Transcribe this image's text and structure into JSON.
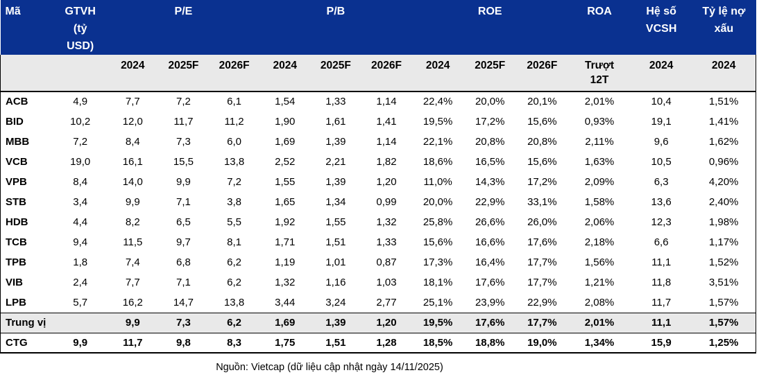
{
  "colors": {
    "header_bg": "#0a3190",
    "band_bg": "#e9e9e9",
    "border": "#000000"
  },
  "table": {
    "header_groups": [
      {
        "label": "Mã",
        "span": 1,
        "align": "left"
      },
      {
        "label": "GTVH\n(tỷ\nUSD)",
        "span": 1
      },
      {
        "label": "P/E",
        "span": 3
      },
      {
        "label": "P/B",
        "span": 3
      },
      {
        "label": "ROE",
        "span": 3
      },
      {
        "label": "ROA",
        "span": 1
      },
      {
        "label": "Hệ số\nVCSH",
        "span": 1
      },
      {
        "label": "Tỷ lệ nợ\nxấu",
        "span": 1
      }
    ],
    "subheaders": [
      "",
      "",
      "2024",
      "2025F",
      "2026F",
      "2024",
      "2025F",
      "2026F",
      "2024",
      "2025F",
      "2026F",
      "Trượt\n12T",
      "2024",
      "2024"
    ]
  },
  "chart_data": {
    "type": "table",
    "title": "",
    "columns": [
      "Mã",
      "GTVH (tỷ USD)",
      "P/E 2024",
      "P/E 2025F",
      "P/E 2026F",
      "P/B 2024",
      "P/B 2025F",
      "P/B 2026F",
      "ROE 2024",
      "ROE 2025F",
      "ROE 2026F",
      "ROA Trượt 12T",
      "Hệ số VCSH 2024",
      "Tỷ lệ nợ xấu 2024"
    ],
    "rows": [
      [
        "ACB",
        "4,9",
        "7,7",
        "7,2",
        "6,1",
        "1,54",
        "1,33",
        "1,14",
        "22,4%",
        "20,0%",
        "20,1%",
        "2,01%",
        "10,4",
        "1,51%"
      ],
      [
        "BID",
        "10,2",
        "12,0",
        "11,7",
        "11,2",
        "1,90",
        "1,61",
        "1,41",
        "19,5%",
        "17,2%",
        "15,6%",
        "0,93%",
        "19,1",
        "1,41%"
      ],
      [
        "MBB",
        "7,2",
        "8,4",
        "7,3",
        "6,0",
        "1,69",
        "1,39",
        "1,14",
        "22,1%",
        "20,8%",
        "20,8%",
        "2,11%",
        "9,6",
        "1,62%"
      ],
      [
        "VCB",
        "19,0",
        "16,1",
        "15,5",
        "13,8",
        "2,52",
        "2,21",
        "1,82",
        "18,6%",
        "16,5%",
        "15,6%",
        "1,63%",
        "10,5",
        "0,96%"
      ],
      [
        "VPB",
        "8,4",
        "14,0",
        "9,9",
        "7,2",
        "1,55",
        "1,39",
        "1,20",
        "11,0%",
        "14,3%",
        "17,2%",
        "2,09%",
        "6,3",
        "4,20%"
      ],
      [
        "STB",
        "3,4",
        "9,9",
        "7,1",
        "3,8",
        "1,65",
        "1,34",
        "0,99",
        "20,0%",
        "22,9%",
        "33,1%",
        "1,58%",
        "13,6",
        "2,40%"
      ],
      [
        "HDB",
        "4,4",
        "8,2",
        "6,5",
        "5,5",
        "1,92",
        "1,55",
        "1,32",
        "25,8%",
        "26,6%",
        "26,0%",
        "2,06%",
        "12,3",
        "1,98%"
      ],
      [
        "TCB",
        "9,4",
        "11,5",
        "9,7",
        "8,1",
        "1,71",
        "1,51",
        "1,33",
        "15,6%",
        "16,6%",
        "17,6%",
        "2,18%",
        "6,6",
        "1,17%"
      ],
      [
        "TPB",
        "1,8",
        "7,4",
        "6,8",
        "6,2",
        "1,19",
        "1,01",
        "0,87",
        "17,3%",
        "16,4%",
        "17,7%",
        "1,56%",
        "11,1",
        "1,52%"
      ],
      [
        "VIB",
        "2,4",
        "7,7",
        "7,1",
        "6,2",
        "1,32",
        "1,16",
        "1,03",
        "18,1%",
        "17,6%",
        "17,7%",
        "1,21%",
        "11,8",
        "3,51%"
      ],
      [
        "LPB",
        "5,7",
        "16,2",
        "14,7",
        "13,8",
        "3,44",
        "3,24",
        "2,77",
        "25,1%",
        "23,9%",
        "22,9%",
        "2,08%",
        "11,7",
        "1,57%"
      ]
    ],
    "median_row": [
      "Trung vị",
      "",
      "9,9",
      "7,3",
      "6,2",
      "1,69",
      "1,39",
      "1,20",
      "19,5%",
      "17,6%",
      "17,7%",
      "2,01%",
      "11,1",
      "1,57%"
    ],
    "highlight_row": [
      "CTG",
      "9,9",
      "11,7",
      "9,8",
      "8,3",
      "1,75",
      "1,51",
      "1,28",
      "18,5%",
      "18,8%",
      "19,0%",
      "1,34%",
      "15,9",
      "1,25%"
    ],
    "source": "Nguồn: Vietcap (dữ liệu cập nhật ngày 14/11/2025)"
  }
}
